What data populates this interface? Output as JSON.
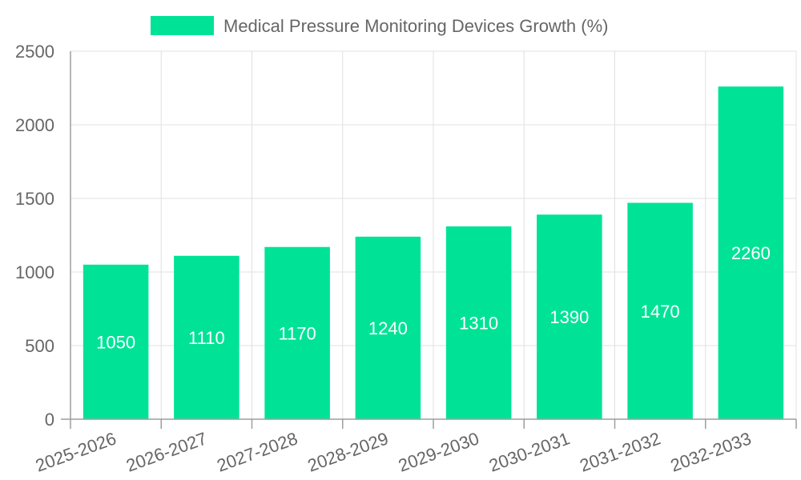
{
  "chart_data": {
    "type": "bar",
    "title": "",
    "xlabel": "",
    "ylabel": "",
    "legend": {
      "position": "top-center",
      "label": "Medical Pressure Monitoring Devices Growth (%)"
    },
    "categories": [
      "2025-2026",
      "2026-2027",
      "2027-2028",
      "2028-2029",
      "2029-2030",
      "2030-2031",
      "2031-2032",
      "2032-2033"
    ],
    "series": [
      {
        "name": "Medical Pressure Monitoring Devices Growth (%)",
        "values": [
          1050,
          1110,
          1170,
          1240,
          1310,
          1390,
          1470,
          2260
        ],
        "color": "#00e396"
      }
    ],
    "ylim": [
      0,
      2500
    ],
    "yticks": [
      0,
      500,
      1000,
      1500,
      2000,
      2500
    ],
    "grid": true,
    "data_labels": true
  }
}
